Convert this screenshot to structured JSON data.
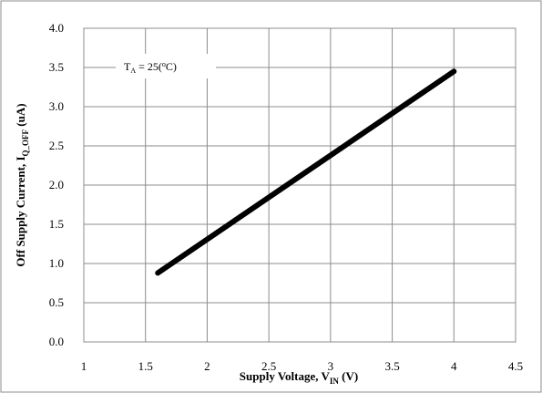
{
  "chart_data": {
    "type": "line",
    "title": "",
    "xlabel": {
      "main": "Supply Voltage, V",
      "sub": "IN",
      "unit": " (V)"
    },
    "ylabel": {
      "main": "Off Supply Current, I",
      "sub": "Q_OFF",
      "unit": " (uA)"
    },
    "xlim": [
      1,
      4.5
    ],
    "ylim": [
      0,
      4.0
    ],
    "x_ticks": [
      "1",
      "1.5",
      "2",
      "2.5",
      "3",
      "3.5",
      "4",
      "4.5"
    ],
    "y_ticks": [
      "0.0",
      "0.5",
      "1.0",
      "1.5",
      "2.0",
      "2.5",
      "3.0",
      "3.5",
      "4.0"
    ],
    "grid": true,
    "annotation": {
      "main": "T",
      "sub": "A",
      "rest": " = 25(",
      "sup": "o",
      "end": "C)"
    },
    "series": [
      {
        "x": [
          1.6,
          4.0
        ],
        "y": [
          0.88,
          3.45
        ]
      }
    ]
  }
}
